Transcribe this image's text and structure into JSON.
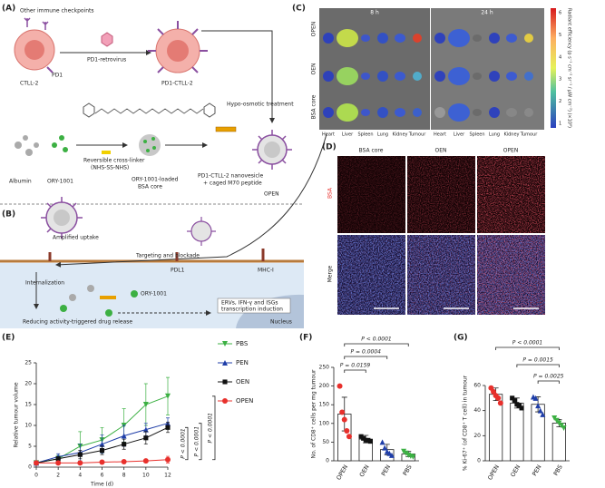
{
  "panels": {
    "A": {
      "label": "(A)",
      "texts": [
        "Other immune checkpoints",
        "PD1",
        "CTLL-2",
        "PD1-retrovirus",
        "PD1-CTLL-2",
        "Hypo-osmotic treatment",
        "Albumin",
        "ORY-1001",
        "Reversible cross-linker",
        "(NHS-SS-NHS)",
        "ORY-1001-loaded",
        "BSA core",
        "PD1-CTLL-2 nanovesicle",
        "+ caged M70 peptide",
        "OPEN"
      ]
    },
    "B": {
      "label": "(B)",
      "texts": [
        "Amplified uptake",
        "Targeting and blockade",
        "PDL1",
        "MHC-I",
        "Internalization",
        "ORY-1001",
        "ERVs, IFN-γ and ISGs",
        "transcription induction",
        "Reducing activity-triggered drug release",
        "Nucleus"
      ]
    },
    "C": {
      "label": "(C)",
      "times": [
        "8 h",
        "24 h"
      ],
      "rows": [
        "OPEN",
        "OEN",
        "BSA core"
      ],
      "organs": [
        "Heart",
        "Liver",
        "Spleen",
        "Lung",
        "Kidney",
        "Tumour"
      ],
      "colorbar_ticks": [
        "6",
        "5",
        "4",
        "3",
        "2",
        "1"
      ],
      "colorbar_label": "Radiant efficiency (p s⁻¹ cm⁻² sr⁻¹ / μW cm⁻²) (×10⁸)"
    },
    "D": {
      "label": "(D)",
      "columns": [
        "BSA core",
        "OEN",
        "OPEN"
      ],
      "rows": [
        "BSA",
        "Merge"
      ]
    }
  },
  "chart_data": [
    {
      "type": "line",
      "label": "(E)",
      "ylabel": "Relative tumour volume",
      "xlabel": "Time (d)",
      "x": [
        0,
        2,
        4,
        6,
        8,
        10,
        12
      ],
      "xlim": [
        0,
        12
      ],
      "xticks": [
        0,
        2,
        4,
        6,
        8,
        10,
        12
      ],
      "ylim": [
        0,
        25
      ],
      "yticks": [
        0,
        5,
        10,
        15,
        20,
        25
      ],
      "series": [
        {
          "name": "PBS",
          "color": "#3cb043",
          "marker": "triangle-down",
          "values": [
            1,
            2,
            5,
            6.5,
            10,
            15,
            17
          ],
          "errors": [
            0.2,
            0.8,
            3.5,
            3,
            4,
            5,
            4.5
          ]
        },
        {
          "name": "PEN",
          "color": "#1f3ea8",
          "marker": "triangle-up",
          "values": [
            1,
            2.5,
            3.5,
            5.5,
            7.5,
            9,
            10.5
          ],
          "errors": [
            0.2,
            0.7,
            2,
            2.2,
            2.5,
            1.5,
            1.3
          ]
        },
        {
          "name": "OEN",
          "color": "#111111",
          "marker": "square",
          "values": [
            1,
            2,
            3,
            4,
            5.5,
            7,
            9.5
          ],
          "errors": [
            0.2,
            0.5,
            1,
            1,
            1.2,
            1.5,
            1.2
          ]
        },
        {
          "name": "OPEN",
          "color": "#e8302c",
          "marker": "circle",
          "values": [
            1,
            1,
            1,
            1.2,
            1.3,
            1.5,
            1.8
          ],
          "errors": [
            0.1,
            0.1,
            0.2,
            0.3,
            0.3,
            0.4,
            0.8
          ]
        }
      ],
      "annotations": [
        "P < 0.0001",
        "P < 0.0001",
        "P < 0.0001"
      ]
    },
    {
      "type": "bar",
      "label": "(F)",
      "ylabel": "No. of CD8⁺ cells per mg tumour",
      "categories": [
        "OPEN",
        "OEN",
        "PEN",
        "PBS"
      ],
      "colors": [
        "#e8302c",
        "#111111",
        "#1f3ea8",
        "#3cb043"
      ],
      "values": [
        125,
        58,
        30,
        18
      ],
      "errors": [
        45,
        10,
        14,
        7
      ],
      "points": [
        [
          200,
          130,
          110,
          80,
          65
        ],
        [
          65,
          60,
          55,
          55,
          52
        ],
        [
          50,
          35,
          25,
          20,
          15
        ],
        [
          25,
          20,
          15,
          12,
          10
        ]
      ],
      "ylim": [
        0,
        250
      ],
      "yticks": [
        0,
        50,
        100,
        150,
        200,
        250
      ],
      "annotations": [
        "P = 0.0159",
        "P = 0.0004",
        "P < 0.0001"
      ]
    },
    {
      "type": "bar",
      "label": "(G)",
      "ylabel": "% Ki-67⁺ (of CD8⁺ T cell) in tumour",
      "categories": [
        "OPEN",
        "OEN",
        "PEN",
        "PBS"
      ],
      "colors": [
        "#e8302c",
        "#111111",
        "#1f3ea8",
        "#3cb043"
      ],
      "values": [
        53,
        46,
        45,
        30
      ],
      "errors": [
        5,
        4,
        6,
        3
      ],
      "points": [
        [
          58,
          55,
          52,
          50,
          46
        ],
        [
          50,
          48,
          45,
          44,
          42
        ],
        [
          51,
          50,
          44,
          40,
          37
        ],
        [
          34,
          32,
          30,
          28,
          26
        ]
      ],
      "ylim": [
        0,
        60
      ],
      "yticks": [
        0,
        20,
        40,
        60
      ],
      "annotations": [
        "P < 0.0001",
        "P = 0.0015",
        "P = 0.0025"
      ]
    }
  ]
}
